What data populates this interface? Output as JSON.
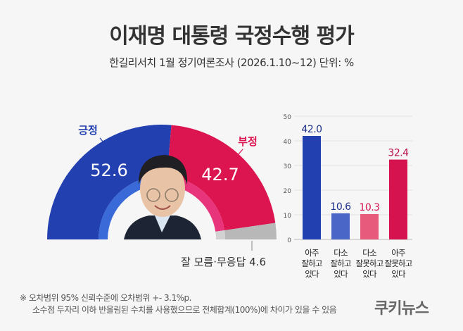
{
  "title": "이재명 대통령 국정수행 평가",
  "subtitle": "한길리서치 1월 정기여론조사 (2026.1.10~12) 단위: %",
  "chart_data": [
    {
      "type": "pie",
      "variant": "half-donut",
      "slices": [
        {
          "label": "긍정",
          "value": 52.6,
          "value_label": "52.6",
          "color": "#2340b0",
          "inner_color": "#3a6ad8"
        },
        {
          "label": "부정",
          "value": 42.7,
          "value_label": "42.7",
          "color": "#dc1450",
          "inner_color": "#e8347a"
        },
        {
          "label": "잘 모름·무응답 4.6",
          "value": 4.6,
          "color": "#b8b8b8",
          "inner_color": "#d2d2d2"
        }
      ]
    },
    {
      "type": "bar",
      "categories": [
        [
          "아주",
          "잘하고",
          "있다"
        ],
        [
          "다소",
          "잘하고",
          "있다"
        ],
        [
          "다소",
          "잘못하고",
          "있다"
        ],
        [
          "아주",
          "잘못하고",
          "있다"
        ]
      ],
      "values": [
        42.0,
        10.6,
        10.3,
        32.4
      ],
      "value_labels": [
        "42.0",
        "10.6",
        "10.3",
        "32.4"
      ],
      "colors": [
        "#2340b0",
        "#4a67c8",
        "#e85a7c",
        "#d4134f"
      ],
      "label_colors": [
        "#1c2f8c",
        "#1c2f8c",
        "#d4134f",
        "#b80f44"
      ],
      "ylim": [
        0,
        50
      ],
      "yticks": [
        "0",
        "10",
        "20",
        "30",
        "40",
        "50"
      ],
      "grid": true
    }
  ],
  "notes": [
    "※ 오차범위 95% 신뢰수준에 오차범위 +- 3.1%p.",
    "소수점 두자리 이하 반올림된 수치를 사용했으므로 전체합계(100%)에 차이가 있을 수 있음"
  ],
  "logo": "쿠키뉴스"
}
